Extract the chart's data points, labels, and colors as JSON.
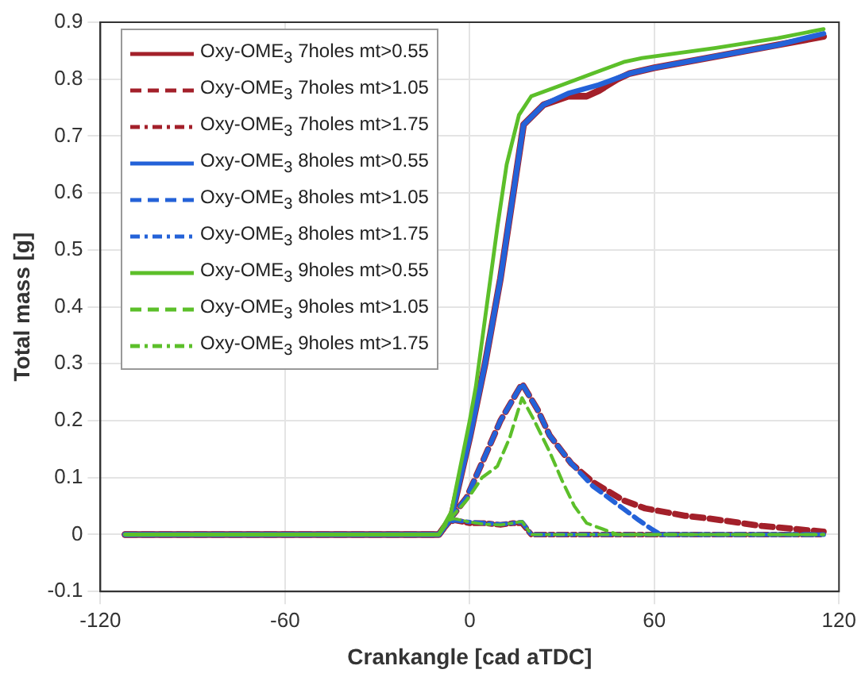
{
  "chart_data": {
    "type": "line",
    "xlabel": "Crankangle [cad aTDC]",
    "ylabel": "Total mass [g]",
    "xlim": [
      -120,
      120
    ],
    "xticks": [
      -120,
      -60,
      0,
      60,
      120
    ],
    "ylim": [
      -0.1,
      0.9
    ],
    "yticks": [
      -0.1,
      0,
      0.1,
      0.2,
      0.3,
      0.4,
      0.5,
      0.6,
      0.7,
      0.8,
      0.9
    ],
    "grid": true,
    "legend": "top left",
    "marker": "none",
    "series": [
      {
        "name": "Oxy-OME$_{3}$ 7holes mt>0.55",
        "color": "#a3202a",
        "line_style": "solid",
        "x": [
          -112,
          -10,
          -6,
          0,
          5,
          10,
          12.5,
          15,
          17.5,
          24,
          32,
          38,
          42,
          48,
          52,
          60,
          80,
          100,
          115
        ],
        "values": [
          0,
          0,
          0.03,
          0.17,
          0.3,
          0.45,
          0.54,
          0.63,
          0.72,
          0.755,
          0.77,
          0.77,
          0.78,
          0.8,
          0.81,
          0.82,
          0.84,
          0.86,
          0.875
        ]
      },
      {
        "name": "Oxy-OME$_{3}$ 7holes mt>1.05",
        "color": "#a3202a",
        "line_style": "dashed",
        "x": [
          -112,
          -10,
          -6,
          -1,
          5,
          10,
          17,
          22,
          26,
          33,
          40,
          50,
          57,
          70,
          78,
          95,
          115
        ],
        "values": [
          0,
          0,
          0.03,
          0.065,
          0.138,
          0.2,
          0.265,
          0.22,
          0.174,
          0.125,
          0.092,
          0.06,
          0.046,
          0.033,
          0.028,
          0.015,
          0.005
        ]
      },
      {
        "name": "Oxy-OME$_{3}$ 7holes mt>1.75",
        "color": "#a3202a",
        "line_style": "dashdot",
        "x": [
          -112,
          -10,
          -7,
          -5,
          0,
          5,
          10,
          14,
          17,
          20,
          115
        ],
        "values": [
          0,
          0,
          0.02,
          0.025,
          0.02,
          0.02,
          0.017,
          0.02,
          0.02,
          0,
          0
        ]
      },
      {
        "name": "Oxy-OME$_{3}$ 8holes mt>0.55",
        "color": "#2462d8",
        "line_style": "solid",
        "x": [
          -112,
          -10,
          -6,
          0,
          5,
          10,
          12.5,
          15,
          17.5,
          24,
          32,
          42,
          52,
          60,
          80,
          100,
          115
        ],
        "values": [
          0,
          0,
          0.03,
          0.17,
          0.3,
          0.45,
          0.54,
          0.63,
          0.72,
          0.755,
          0.775,
          0.79,
          0.81,
          0.82,
          0.84,
          0.86,
          0.88
        ]
      },
      {
        "name": "Oxy-OME$_{3}$ 8holes mt>1.05",
        "color": "#2462d8",
        "line_style": "dashed",
        "x": [
          -112,
          -10,
          -6,
          -1,
          5,
          10,
          17,
          22,
          26,
          33,
          40,
          50,
          55,
          59,
          62,
          115
        ],
        "values": [
          0,
          0,
          0.03,
          0.065,
          0.138,
          0.2,
          0.265,
          0.22,
          0.174,
          0.125,
          0.085,
          0.045,
          0.025,
          0.01,
          0,
          0
        ]
      },
      {
        "name": "Oxy-OME$_{3}$ 8holes mt>1.75",
        "color": "#2462d8",
        "line_style": "dashdot",
        "x": [
          -112,
          -10,
          -7,
          -5,
          0,
          5,
          10,
          14,
          17,
          20,
          115
        ],
        "values": [
          0,
          0,
          0.02,
          0.025,
          0.022,
          0.02,
          0.018,
          0.02,
          0.022,
          0,
          0
        ]
      },
      {
        "name": "Oxy-OME$_{3}$ 9holes mt>0.55",
        "color": "#5cbf2a",
        "line_style": "solid",
        "x": [
          -112,
          -10,
          -6,
          0,
          2,
          5,
          9,
          12,
          16,
          20,
          30,
          40,
          50,
          56,
          80,
          100,
          115
        ],
        "values": [
          0,
          0,
          0.04,
          0.2,
          0.26,
          0.38,
          0.54,
          0.65,
          0.737,
          0.77,
          0.79,
          0.81,
          0.83,
          0.837,
          0.855,
          0.872,
          0.888
        ]
      },
      {
        "name": "Oxy-OME$_{3}$ 9holes mt>1.05",
        "color": "#5cbf2a",
        "line_style": "dashed",
        "x": [
          -112,
          -10,
          -6,
          -1,
          4,
          9,
          13,
          17,
          21,
          26,
          30,
          34,
          38,
          43,
          48,
          60,
          115
        ],
        "values": [
          0,
          0,
          0.03,
          0.06,
          0.1,
          0.12,
          0.17,
          0.24,
          0.2,
          0.145,
          0.095,
          0.05,
          0.02,
          0.01,
          0,
          0,
          0
        ]
      },
      {
        "name": "Oxy-OME$_{3}$ 9holes mt>1.75",
        "color": "#5cbf2a",
        "line_style": "dashdot",
        "x": [
          -112,
          -10,
          -7,
          -5,
          0,
          5,
          10,
          14,
          17,
          20,
          115
        ],
        "values": [
          0,
          0,
          0.025,
          0.028,
          0.022,
          0.018,
          0.017,
          0.02,
          0.023,
          0,
          0
        ]
      }
    ]
  }
}
